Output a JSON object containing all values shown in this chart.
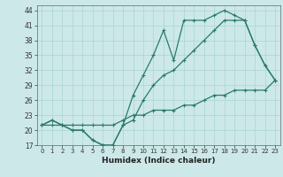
{
  "xlabel": "Humidex (Indice chaleur)",
  "ylabel": "",
  "bg_color": "#cce8e8",
  "line_color": "#2a7a6a",
  "grid_color": "#aad4d4",
  "xlim": [
    -0.5,
    23.5
  ],
  "ylim": [
    17,
    45
  ],
  "yticks": [
    17,
    20,
    23,
    26,
    29,
    32,
    35,
    38,
    41,
    44
  ],
  "xticks": [
    0,
    1,
    2,
    3,
    4,
    5,
    6,
    7,
    8,
    9,
    10,
    11,
    12,
    13,
    14,
    15,
    16,
    17,
    18,
    19,
    20,
    21,
    22,
    23
  ],
  "line1_x": [
    0,
    1,
    2,
    3,
    4,
    5,
    6,
    7,
    8,
    9,
    10,
    11,
    12,
    13,
    14,
    15,
    16,
    17,
    18,
    19,
    20,
    21,
    22,
    23
  ],
  "line1_y": [
    21,
    21,
    21,
    20,
    20,
    18,
    17,
    17,
    21,
    27,
    31,
    35,
    40,
    34,
    42,
    42,
    42,
    43,
    44,
    43,
    42,
    37,
    33,
    30
  ],
  "line2_x": [
    0,
    1,
    2,
    3,
    4,
    5,
    6,
    7,
    8,
    9,
    10,
    11,
    12,
    13,
    14,
    15,
    16,
    17,
    18,
    19,
    20,
    21,
    22,
    23
  ],
  "line2_y": [
    21,
    22,
    21,
    20,
    20,
    18,
    17,
    17,
    21,
    22,
    26,
    29,
    31,
    32,
    34,
    36,
    38,
    40,
    42,
    42,
    42,
    37,
    33,
    30
  ],
  "line3_x": [
    0,
    1,
    2,
    3,
    4,
    5,
    6,
    7,
    8,
    9,
    10,
    11,
    12,
    13,
    14,
    15,
    16,
    17,
    18,
    19,
    20,
    21,
    22,
    23
  ],
  "line3_y": [
    21,
    22,
    21,
    21,
    21,
    21,
    21,
    21,
    22,
    23,
    23,
    24,
    24,
    24,
    25,
    25,
    26,
    27,
    27,
    28,
    28,
    28,
    28,
    30
  ]
}
